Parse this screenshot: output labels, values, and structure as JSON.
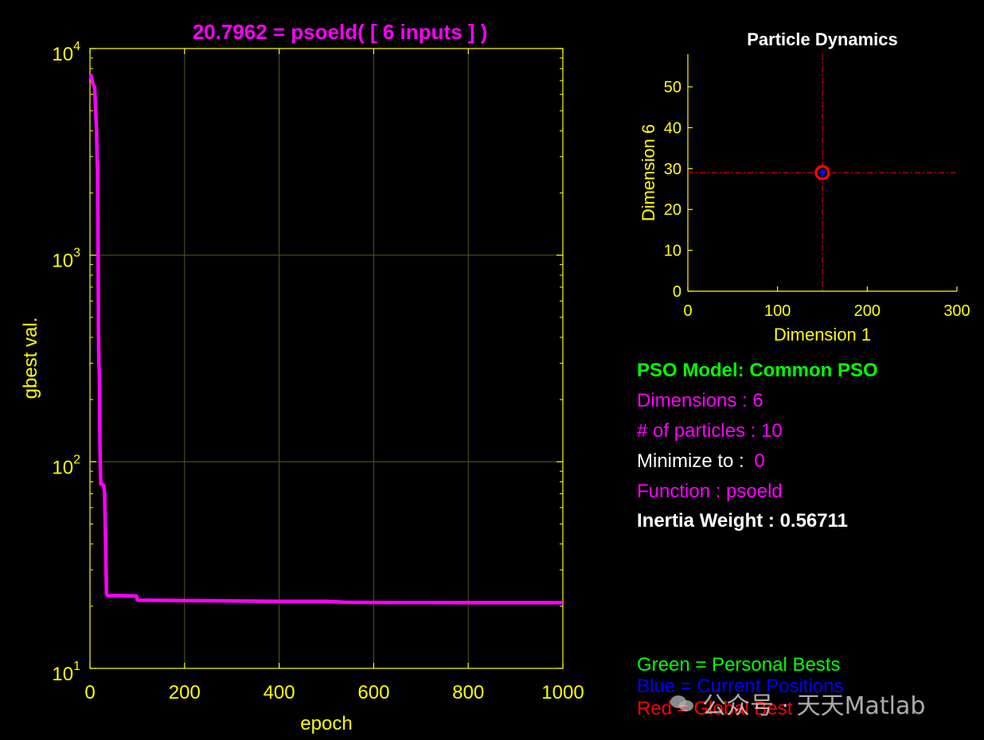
{
  "chart_data": [
    {
      "type": "line",
      "title": "20.7962 = psoeld( [ 6 inputs ] )",
      "xlabel": "epoch",
      "ylabel": "gbest val.",
      "xlim": [
        0,
        1000
      ],
      "ylim": [
        10,
        10000
      ],
      "yscale": "log",
      "grid": true,
      "xticks": [
        0,
        200,
        400,
        600,
        800,
        1000
      ],
      "xtick_labels": [
        "0",
        "200",
        "400",
        "600",
        "800",
        "1000"
      ],
      "yticks": [
        10,
        100,
        1000,
        10000
      ],
      "ytick_labels": [
        {
          "base": "10",
          "exp": "1"
        },
        {
          "base": "10",
          "exp": "2"
        },
        {
          "base": "10",
          "exp": "3"
        },
        {
          "base": "10",
          "exp": "4"
        }
      ],
      "colors": {
        "background": "#000000",
        "axes": "#ffff00",
        "line": "#ff00ff",
        "title": "#ff00ff",
        "grid": "#555522"
      },
      "series": [
        {
          "x": [
            1,
            3,
            5,
            8,
            10,
            12,
            14,
            15,
            16,
            17,
            18,
            19,
            20,
            21,
            22,
            23,
            24,
            25,
            26,
            27,
            28,
            29,
            30,
            31,
            35,
            37,
            38,
            40,
            45,
            60,
            98,
            100,
            102,
            200,
            300,
            400,
            500,
            540,
            600,
            700,
            800,
            900,
            1000
          ],
          "y": [
            7500,
            7300,
            6900,
            6600,
            6500,
            5000,
            4000,
            3000,
            2600,
            1200,
            420,
            300,
            260,
            130,
            95,
            78,
            78,
            78,
            78,
            77,
            77,
            77,
            74,
            70,
            23,
            22.5,
            22.5,
            22.5,
            22.5,
            22.5,
            22.4,
            21.5,
            21.4,
            21.3,
            21.2,
            21.1,
            21.1,
            20.9,
            20.85,
            20.83,
            20.81,
            20.8,
            20.8
          ]
        }
      ]
    },
    {
      "type": "scatter",
      "title": "Particle Dynamics",
      "xlabel": "Dimension 1",
      "ylabel": "Dimension 6",
      "xlim": [
        0,
        300
      ],
      "ylim": [
        0,
        58
      ],
      "grid": false,
      "xticks": [
        0,
        100,
        200,
        300
      ],
      "yticks": [
        0,
        10,
        20,
        30,
        40,
        50
      ],
      "colors": {
        "background": "#000000",
        "axes": "#ffff00",
        "title": "#ffffff",
        "crosshair": "#ff0000",
        "global_best": "#ff0000",
        "current_positions": "#0000ff"
      },
      "global_best": {
        "x": 150,
        "y": 29
      },
      "current_positions": [
        {
          "x": 150,
          "y": 29
        }
      ]
    }
  ],
  "info_panel": {
    "model": "PSO Model: Common PSO",
    "dimensions": "Dimensions : 6",
    "particles": "# of particles : 10",
    "minimize_label": "Minimize to : ",
    "minimize_value": "0",
    "function": "Function : psoeld",
    "inertia": "Inertia Weight : 0.56711",
    "colors": {
      "model": "#00ff00",
      "magenta": "#ff00ff",
      "white": "#ffffff"
    }
  },
  "legend": {
    "green": "Green = Personal Bests",
    "blue": "Blue  = Current Positions",
    "red": "Red    = Global Best",
    "colors": {
      "green": "#00ff00",
      "blue": "#0000ff",
      "red": "#ff0000"
    }
  },
  "watermark": {
    "text": "公众号 · 天天Matlab",
    "icon": "wechat-icon"
  }
}
